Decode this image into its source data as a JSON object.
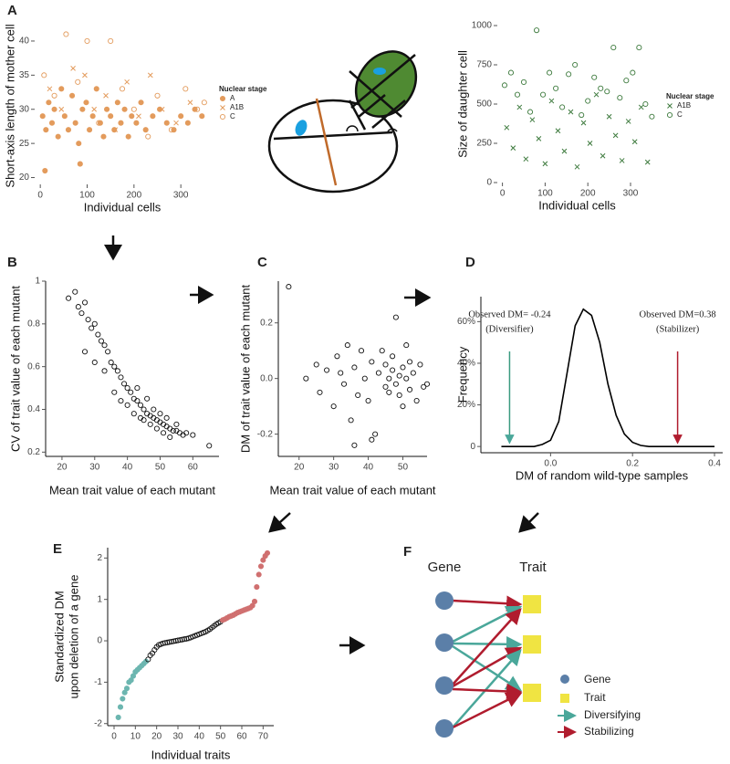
{
  "chart_data": [
    {
      "type": "scatter",
      "panel": "A",
      "x_label": "Individual cells",
      "y_label": [
        "Short-axis length of mother cell"
      ],
      "xlim": [
        -12,
        362
      ],
      "ylim": [
        19,
        42
      ],
      "xticks": [
        0,
        100,
        200,
        300
      ],
      "yticks": [
        20,
        25,
        30,
        35,
        40
      ],
      "axis_lines": false,
      "legend_title": "Nuclear stage",
      "series": [
        {
          "name": "A",
          "color": "#e39b5c",
          "marker": "circle",
          "filled": true,
          "x": [
            5,
            12,
            18,
            25,
            30,
            38,
            45,
            52,
            60,
            68,
            75,
            82,
            90,
            98,
            105,
            112,
            120,
            128,
            135,
            142,
            150,
            158,
            165,
            172,
            180,
            188,
            195,
            205,
            215,
            225,
            240,
            255,
            270,
            285,
            300,
            315,
            330,
            345,
            10,
            85
          ],
          "values": [
            29,
            27,
            31,
            28,
            30,
            26,
            33,
            29,
            27,
            32,
            28,
            25,
            30,
            31,
            27,
            29,
            33,
            28,
            26,
            30,
            29,
            27,
            31,
            28,
            30,
            26,
            29,
            28,
            31,
            27,
            29,
            30,
            28,
            27,
            29,
            28,
            30,
            29,
            21,
            22
          ]
        },
        {
          "name": "A1B",
          "color": "#e39b5c",
          "marker": "cross",
          "filled": false,
          "x": [
            20,
            45,
            70,
            95,
            115,
            140,
            160,
            185,
            210,
            235,
            260,
            290,
            320
          ],
          "values": [
            33,
            30,
            36,
            35,
            30,
            32,
            27,
            34,
            29,
            35,
            30,
            28,
            31
          ]
        },
        {
          "name": "C",
          "color": "#e39b5c",
          "marker": "circle",
          "filled": false,
          "x": [
            8,
            30,
            55,
            80,
            100,
            125,
            150,
            175,
            200,
            230,
            250,
            280,
            310,
            335,
            350
          ],
          "values": [
            35,
            32,
            41,
            34,
            40,
            28,
            40,
            33,
            30,
            26,
            32,
            27,
            33,
            30,
            31
          ]
        }
      ]
    },
    {
      "type": "scatter",
      "x_label": "Individual cells",
      "y_label": [
        "Size of daughter cell"
      ],
      "xlim": [
        -12,
        362
      ],
      "ylim": [
        0,
        1000
      ],
      "xticks": [
        0,
        100,
        200,
        300
      ],
      "yticks": [
        0,
        250,
        500,
        750,
        1000
      ],
      "axis_lines": false,
      "legend_title": "Nuclear stage",
      "series": [
        {
          "name": "A1B",
          "color": "#3d7a3d",
          "marker": "cross",
          "filled": false,
          "x": [
            10,
            25,
            40,
            55,
            70,
            85,
            100,
            115,
            130,
            145,
            160,
            175,
            190,
            205,
            220,
            235,
            250,
            265,
            280,
            295,
            310,
            325,
            340
          ],
          "values": [
            350,
            220,
            480,
            150,
            400,
            280,
            120,
            520,
            330,
            200,
            450,
            100,
            380,
            250,
            560,
            170,
            420,
            300,
            140,
            390,
            260,
            480,
            130
          ]
        },
        {
          "name": "C",
          "color": "#3d7a3d",
          "marker": "circle",
          "filled": false,
          "x": [
            5,
            20,
            35,
            50,
            65,
            80,
            95,
            110,
            125,
            140,
            155,
            170,
            185,
            200,
            215,
            230,
            245,
            260,
            275,
            290,
            305,
            320,
            335,
            350
          ],
          "values": [
            620,
            700,
            560,
            640,
            450,
            970,
            560,
            700,
            600,
            480,
            690,
            750,
            430,
            520,
            670,
            600,
            580,
            860,
            540,
            650,
            700,
            860,
            500,
            420
          ]
        }
      ]
    },
    {
      "type": "scatter",
      "panel": "B",
      "x_label": "Mean trait value of each mutant",
      "y_label": [
        "CV of trait value of each mutant"
      ],
      "xlim": [
        15,
        68
      ],
      "ylim": [
        0.18,
        1.0
      ],
      "xticks": [
        20,
        30,
        40,
        50,
        60
      ],
      "yticks": [
        0.2,
        0.4,
        0.6,
        0.8,
        1.0
      ],
      "axis_lines": true,
      "series": [
        {
          "color": "#111111",
          "marker": "circle",
          "filled": false,
          "x": [
            22,
            24,
            25,
            26,
            27,
            28,
            29,
            30,
            31,
            32,
            33,
            34,
            35,
            36,
            37,
            38,
            39,
            40,
            41,
            42,
            43,
            44,
            45,
            46,
            47,
            48,
            49,
            50,
            51,
            52,
            53,
            54,
            55,
            56,
            57,
            58,
            60,
            65,
            27,
            38,
            44,
            46,
            48,
            50,
            42,
            52,
            47,
            45,
            53,
            49,
            43,
            40,
            55,
            51,
            36,
            33,
            30
          ],
          "values": [
            0.92,
            0.95,
            0.88,
            0.85,
            0.9,
            0.82,
            0.78,
            0.8,
            0.75,
            0.72,
            0.7,
            0.67,
            0.62,
            0.6,
            0.58,
            0.55,
            0.52,
            0.5,
            0.48,
            0.45,
            0.44,
            0.42,
            0.4,
            0.38,
            0.37,
            0.36,
            0.35,
            0.34,
            0.33,
            0.32,
            0.31,
            0.3,
            0.3,
            0.29,
            0.28,
            0.29,
            0.28,
            0.23,
            0.67,
            0.44,
            0.36,
            0.45,
            0.4,
            0.38,
            0.38,
            0.36,
            0.33,
            0.35,
            0.27,
            0.31,
            0.5,
            0.42,
            0.33,
            0.29,
            0.48,
            0.58,
            0.62
          ]
        }
      ]
    },
    {
      "type": "scatter",
      "panel": "C",
      "x_label": "Mean trait value of each mutant",
      "y_label": [
        "DM of trait value of each mutant"
      ],
      "xlim": [
        14,
        57
      ],
      "ylim": [
        -0.28,
        0.35
      ],
      "xticks": [
        20,
        30,
        40,
        50
      ],
      "yticks": [
        -0.2,
        {
          "value": 0,
          "label": "0.0"
        },
        0.2
      ],
      "axis_lines": true,
      "series": [
        {
          "color": "#111111",
          "marker": "circle",
          "filled": false,
          "x": [
            17,
            22,
            25,
            26,
            28,
            30,
            31,
            32,
            33,
            34,
            35,
            36,
            37,
            38,
            39,
            40,
            41,
            42,
            43,
            44,
            45,
            45,
            46,
            46,
            47,
            47,
            48,
            48,
            49,
            49,
            50,
            50,
            51,
            51,
            52,
            52,
            53,
            54,
            55,
            56,
            57,
            36,
            41
          ],
          "values": [
            0.33,
            0.0,
            0.05,
            -0.05,
            0.03,
            -0.1,
            0.08,
            0.02,
            -0.02,
            0.12,
            -0.15,
            0.04,
            -0.06,
            0.1,
            0.0,
            -0.08,
            0.06,
            -0.2,
            0.02,
            0.1,
            -0.03,
            0.05,
            0.0,
            -0.05,
            0.03,
            0.08,
            -0.02,
            0.22,
            0.01,
            -0.06,
            0.04,
            -0.1,
            0.0,
            0.12,
            -0.04,
            0.06,
            0.02,
            -0.08,
            0.05,
            -0.03,
            -0.02,
            -0.24,
            -0.22
          ]
        }
      ]
    },
    {
      "type": "line",
      "panel": "D",
      "x_label": "DM of random wild-type samples",
      "y_label": [
        "Frequency"
      ],
      "xlim": [
        -0.17,
        0.42
      ],
      "ylim": [
        -3,
        72
      ],
      "xticks": [
        {
          "value": 0,
          "label": "0.0"
        },
        0.2,
        0.4
      ],
      "yticks": [
        {
          "value": 0,
          "label": "0"
        },
        {
          "value": 20,
          "label": "20%"
        },
        {
          "value": 40,
          "label": "40%"
        },
        {
          "value": 60,
          "label": "60%"
        }
      ],
      "axis_lines": true,
      "series": [
        {
          "color": "#000000",
          "x": [
            -0.12,
            -0.08,
            -0.04,
            -0.02,
            0,
            0.02,
            0.04,
            0.06,
            0.08,
            0.1,
            0.12,
            0.14,
            0.16,
            0.18,
            0.2,
            0.22,
            0.24,
            0.28,
            0.32,
            0.36,
            0.4
          ],
          "values": [
            0,
            0,
            0,
            1,
            3,
            12,
            35,
            58,
            66,
            63,
            50,
            30,
            15,
            6,
            2,
            0.5,
            0,
            0,
            0,
            0,
            0
          ]
        }
      ],
      "annotations": [
        {
          "lines": [
            "Observed DM= -0.24",
            "(Diversifier)"
          ],
          "x": -0.1,
          "color": "#3a9a80"
        },
        {
          "lines": [
            "Observed DM=0.38",
            "(Stabilizer)"
          ],
          "x": 0.31,
          "color": "#b01c2e"
        }
      ]
    },
    {
      "type": "scatter",
      "panel": "E",
      "x_label": "Individual traits",
      "y_label": [
        "Standardized DM",
        "upon deletion of a gene"
      ],
      "xlim": [
        -3,
        75
      ],
      "ylim": [
        -2.05,
        2.25
      ],
      "xticks": [
        0,
        10,
        20,
        30,
        40,
        50,
        60,
        70
      ],
      "yticks": [
        -2,
        -1,
        0,
        1,
        2
      ],
      "axis_lines": true,
      "series": [
        {
          "color": "#6cb6b0",
          "marker": "circle",
          "filled": true,
          "x": [
            2,
            3,
            4,
            5,
            6,
            7,
            8,
            9,
            10,
            11,
            12,
            13,
            14,
            15
          ],
          "values": [
            -1.85,
            -1.6,
            -1.4,
            -1.25,
            -1.15,
            -1.0,
            -0.95,
            -0.85,
            -0.75,
            -0.7,
            -0.65,
            -0.6,
            -0.55,
            -0.5
          ]
        },
        {
          "color": "#111111",
          "marker": "circle",
          "filled": false,
          "x": [
            16,
            17,
            18,
            19,
            20,
            21,
            22,
            23,
            24,
            25,
            26,
            27,
            28,
            29,
            30,
            31,
            32,
            33,
            34,
            35,
            36,
            37,
            38,
            39,
            40,
            41,
            42,
            43,
            44,
            45,
            46,
            47,
            48,
            49,
            50
          ],
          "values": [
            -0.45,
            -0.35,
            -0.3,
            -0.22,
            -0.15,
            -0.1,
            -0.08,
            -0.06,
            -0.05,
            -0.04,
            -0.03,
            -0.02,
            -0.01,
            0,
            0.01,
            0.02,
            0.03,
            0.04,
            0.05,
            0.06,
            0.08,
            0.1,
            0.12,
            0.14,
            0.16,
            0.18,
            0.2,
            0.22,
            0.25,
            0.28,
            0.32,
            0.36,
            0.4,
            0.43,
            0.46
          ]
        },
        {
          "color": "#d07070",
          "marker": "circle",
          "filled": true,
          "x": [
            51,
            52,
            53,
            54,
            55,
            56,
            57,
            58,
            59,
            60,
            61,
            62,
            63,
            64,
            65,
            66,
            67,
            68,
            69,
            70,
            71,
            72
          ],
          "values": [
            0.5,
            0.52,
            0.55,
            0.58,
            0.6,
            0.62,
            0.65,
            0.68,
            0.7,
            0.72,
            0.74,
            0.76,
            0.78,
            0.8,
            0.85,
            0.95,
            1.3,
            1.6,
            1.8,
            1.95,
            2.05,
            2.12
          ]
        }
      ]
    }
  ],
  "network": {
    "panel": "F",
    "columns": [
      "Gene",
      "Trait"
    ],
    "legend": [
      "Gene",
      "Trait",
      "Diversifying",
      "Stabilizing"
    ]
  }
}
